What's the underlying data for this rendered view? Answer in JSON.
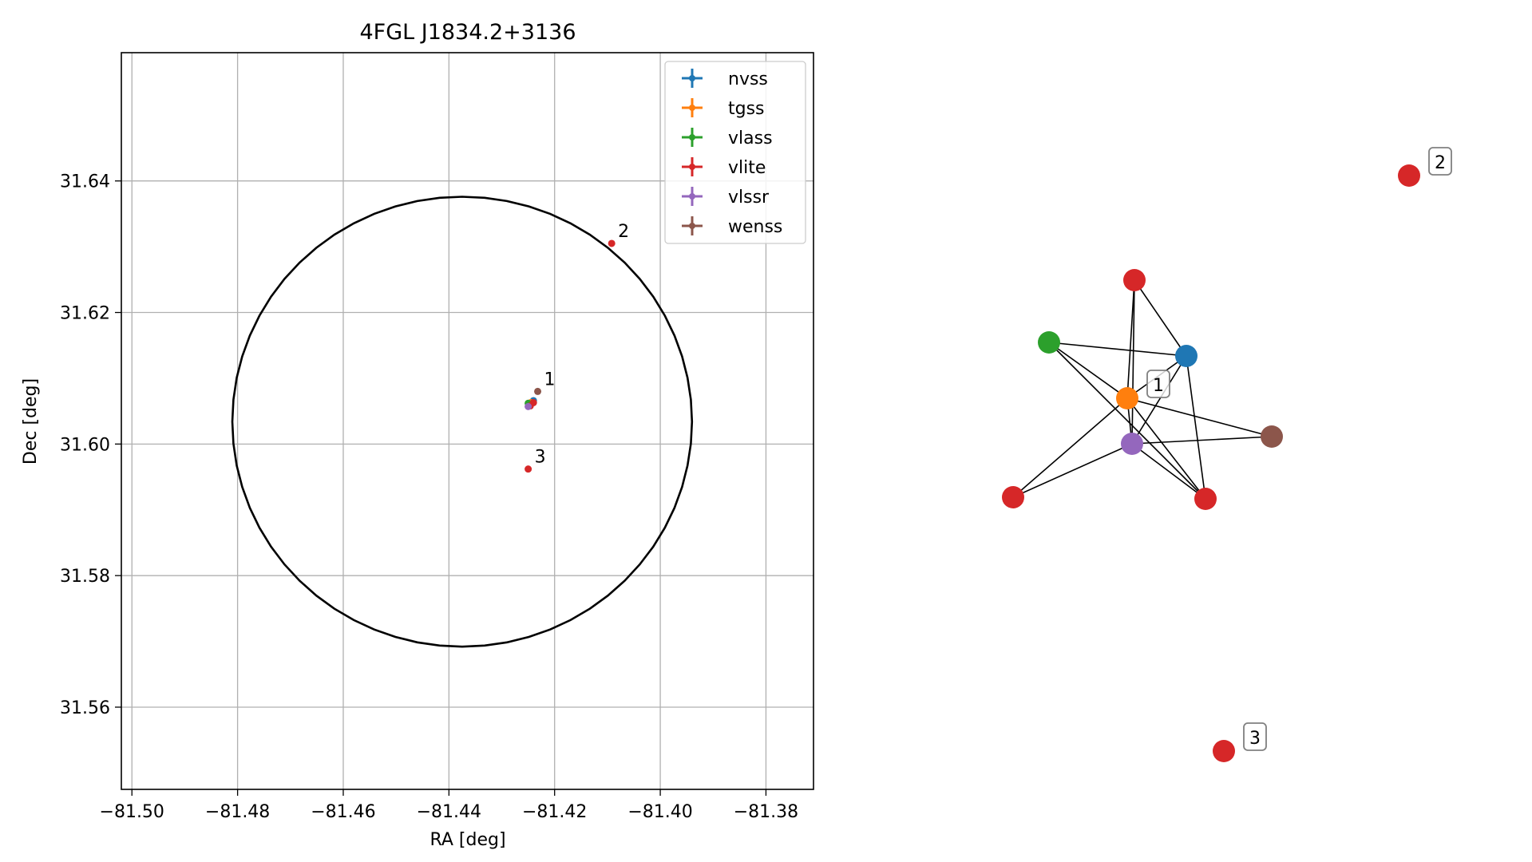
{
  "chart_data": [
    {
      "type": "scatter",
      "title": "4FGL J1834.2+3136",
      "xlabel": "RA [deg]",
      "ylabel": "Dec [deg]",
      "xlim": [
        -81.502,
        -81.371
      ],
      "ylim": [
        31.5475,
        31.6595
      ],
      "xticks": [
        -81.5,
        -81.48,
        -81.46,
        -81.44,
        -81.42,
        -81.4,
        -81.38
      ],
      "xtick_labels": [
        "−81.50",
        "−81.48",
        "−81.46",
        "−81.44",
        "−81.42",
        "−81.40",
        "−81.38"
      ],
      "yticks": [
        31.56,
        31.58,
        31.6,
        31.62,
        31.64
      ],
      "ytick_labels": [
        "31.56",
        "31.58",
        "31.60",
        "31.62",
        "31.64"
      ],
      "grid": true,
      "legend_position": "top-right",
      "circle": {
        "center_ra": -81.4375,
        "center_dec": 31.6034,
        "radius_ra": 0.0435,
        "radius_dec": 0.0342,
        "color": "#000000"
      },
      "series": [
        {
          "name": "nvss",
          "color": "#1f77b4",
          "points": [
            {
              "ra": -81.424,
              "dec": 31.6066
            }
          ]
        },
        {
          "name": "tgss",
          "color": "#ff7f0e",
          "points": [
            {
              "ra": -81.4245,
              "dec": 31.6063
            }
          ]
        },
        {
          "name": "vlass",
          "color": "#2ca02c",
          "points": [
            {
              "ra": -81.425,
              "dec": 31.6062
            }
          ]
        },
        {
          "name": "vlite",
          "color": "#d62728",
          "points": [
            {
              "ra": -81.424,
              "dec": 31.6063
            },
            {
              "ra": -81.4246,
              "dec": 31.6058
            },
            {
              "ra": -81.4092,
              "dec": 31.6305
            },
            {
              "ra": -81.425,
              "dec": 31.5962
            }
          ]
        },
        {
          "name": "vlssr",
          "color": "#9467bd",
          "points": [
            {
              "ra": -81.425,
              "dec": 31.6057
            }
          ]
        },
        {
          "name": "wenss",
          "color": "#8c564b",
          "points": [
            {
              "ra": -81.4232,
              "dec": 31.608
            }
          ]
        }
      ],
      "point_labels": [
        {
          "text": "1",
          "ra": -81.4232,
          "dec": 31.608
        },
        {
          "text": "2",
          "ra": -81.4092,
          "dec": 31.6305
        },
        {
          "text": "3",
          "ra": -81.425,
          "dec": 31.5962
        }
      ]
    },
    {
      "type": "network",
      "nodes": [
        {
          "id": "vlite-a",
          "survey": "vlite",
          "color": "#d62728"
        },
        {
          "id": "vlass",
          "survey": "vlass",
          "color": "#2ca02c"
        },
        {
          "id": "nvss",
          "survey": "nvss",
          "color": "#1f77b4"
        },
        {
          "id": "tgss",
          "survey": "tgss",
          "color": "#ff7f0e",
          "label": "1"
        },
        {
          "id": "vlssr",
          "survey": "vlssr",
          "color": "#9467bd"
        },
        {
          "id": "wenss",
          "survey": "wenss",
          "color": "#8c564b"
        },
        {
          "id": "vlite-b",
          "survey": "vlite",
          "color": "#d62728"
        },
        {
          "id": "vlite-c",
          "survey": "vlite",
          "color": "#d62728"
        },
        {
          "id": "vlite-2",
          "survey": "vlite",
          "color": "#d62728",
          "label": "2"
        },
        {
          "id": "vlite-3",
          "survey": "vlite",
          "color": "#d62728",
          "label": "3"
        }
      ],
      "edges": [
        [
          "vlite-a",
          "nvss"
        ],
        [
          "vlite-a",
          "tgss"
        ],
        [
          "vlite-a",
          "vlssr"
        ],
        [
          "vlass",
          "nvss"
        ],
        [
          "vlass",
          "tgss"
        ],
        [
          "vlass",
          "vlite-c"
        ],
        [
          "nvss",
          "tgss"
        ],
        [
          "nvss",
          "vlssr"
        ],
        [
          "nvss",
          "vlite-c"
        ],
        [
          "tgss",
          "vlssr"
        ],
        [
          "tgss",
          "wenss"
        ],
        [
          "tgss",
          "vlite-b"
        ],
        [
          "tgss",
          "vlite-c"
        ],
        [
          "vlssr",
          "wenss"
        ],
        [
          "vlssr",
          "vlite-b"
        ],
        [
          "vlssr",
          "vlite-c"
        ]
      ]
    }
  ]
}
